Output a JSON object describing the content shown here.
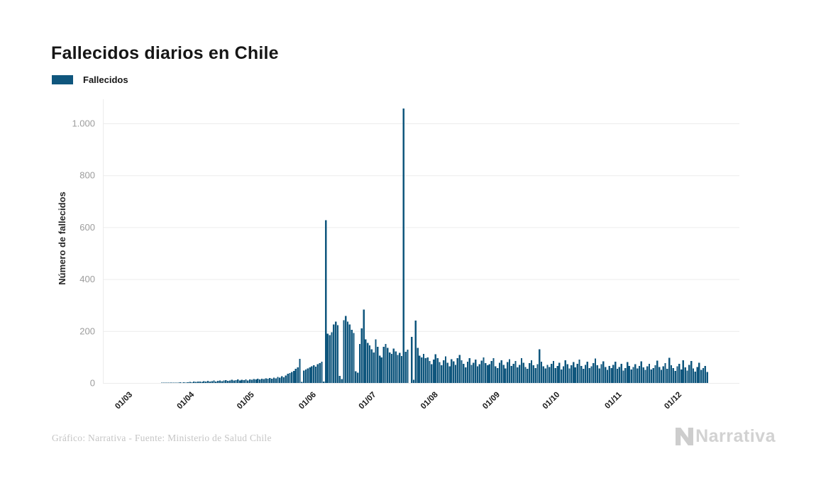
{
  "header": {
    "title": "Fallecidos diarios en Chile"
  },
  "legend": {
    "label": "Fallecidos"
  },
  "footer": {
    "credit": "Gráfico: Narrativa - Fuente: Ministerio de Salud Chile",
    "logo_text": "Narrativa"
  },
  "colors": {
    "bar": "#0f567d",
    "grid": "#ececec",
    "y_tick_text": "#9c9c9c",
    "x_tick_text": "#1a1a1a",
    "axis_title": "#262626"
  },
  "chart_data": {
    "type": "bar",
    "title": "Fallecidos diarios en Chile",
    "xlabel": "",
    "ylabel": "Número de fallecidos",
    "legend": "Fallecidos",
    "grid": true,
    "legend_position": "top-left",
    "ylim": [
      0,
      1100
    ],
    "yticks": [
      0,
      200,
      400,
      600,
      800,
      1000
    ],
    "ytick_labels": [
      "0",
      "200",
      "400",
      "600",
      "800",
      "1.000"
    ],
    "xtick_labels": [
      "01/03",
      "01/04",
      "01/05",
      "01/06",
      "01/07",
      "01/08",
      "01/09",
      "01/10",
      "01/11",
      "01/12"
    ],
    "xtick_day_offsets": [
      0,
      31,
      61,
      92,
      122,
      153,
      184,
      214,
      245,
      275
    ],
    "x_start_label": "01/03",
    "x_unit": "day",
    "values": [
      0,
      0,
      0,
      0,
      0,
      0,
      0,
      0,
      0,
      0,
      0,
      0,
      0,
      0,
      0,
      0,
      0,
      0,
      0,
      0,
      1,
      1,
      1,
      2,
      1,
      2,
      2,
      1,
      2,
      3,
      2,
      3,
      2,
      3,
      4,
      3,
      5,
      4,
      5,
      6,
      4,
      7,
      5,
      8,
      6,
      7,
      9,
      6,
      8,
      10,
      7,
      9,
      11,
      8,
      10,
      12,
      9,
      11,
      13,
      10,
      12,
      11,
      13,
      10,
      14,
      12,
      15,
      13,
      16,
      14,
      17,
      15,
      18,
      16,
      19,
      17,
      21,
      18,
      23,
      20,
      26,
      22,
      29,
      35,
      38,
      42,
      46,
      54,
      60,
      93,
      4,
      48,
      52,
      56,
      60,
      64,
      68,
      63,
      72,
      76,
      82,
      5,
      627,
      190,
      185,
      196,
      226,
      237,
      223,
      28,
      15,
      242,
      258,
      237,
      225,
      205,
      192,
      45,
      40,
      150,
      210,
      283,
      168,
      155,
      145,
      130,
      117,
      168,
      140,
      105,
      98,
      140,
      150,
      135,
      118,
      112,
      133,
      121,
      108,
      116,
      104,
      1057,
      120,
      128,
      0,
      177,
      12,
      240,
      135,
      105,
      98,
      112,
      95,
      98,
      85,
      72,
      90,
      110,
      95,
      80,
      68,
      88,
      102,
      78,
      64,
      92,
      84,
      70,
      96,
      108,
      88,
      74,
      60,
      82,
      95,
      70,
      78,
      90,
      64,
      72,
      86,
      98,
      76,
      68,
      72,
      85,
      95,
      64,
      58,
      78,
      88,
      70,
      56,
      80,
      92,
      66,
      74,
      85,
      60,
      70,
      96,
      78,
      62,
      54,
      76,
      88,
      68,
      58,
      72,
      130,
      82,
      64,
      56,
      70,
      62,
      74,
      85,
      58,
      66,
      78,
      52,
      64,
      88,
      72,
      56,
      68,
      80,
      60,
      74,
      90,
      66,
      54,
      70,
      82,
      58,
      64,
      76,
      94,
      68,
      56,
      72,
      84,
      62,
      50,
      66,
      58,
      70,
      82,
      54,
      62,
      74,
      48,
      58,
      80,
      66,
      52,
      62,
      72,
      56,
      66,
      84,
      60,
      50,
      64,
      74,
      52,
      58,
      68,
      86,
      62,
      50,
      64,
      76,
      54,
      97,
      68,
      58,
      46,
      64,
      74,
      52,
      88,
      60,
      48,
      70,
      85,
      56,
      44,
      62,
      78,
      50,
      58,
      66,
      42
    ]
  }
}
